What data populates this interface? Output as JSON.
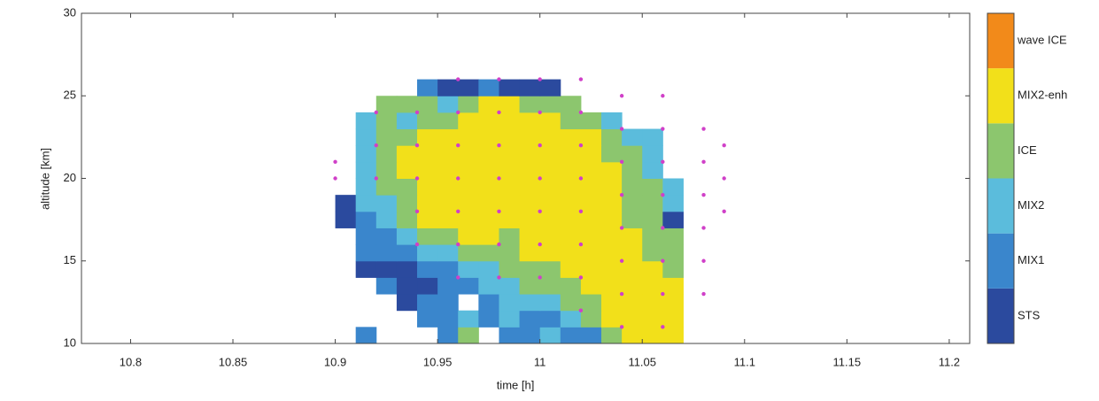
{
  "chart_data": {
    "type": "heatmap",
    "xlabel": "time [h]",
    "ylabel": "altitude [km]",
    "xlim": [
      10.776,
      11.21
    ],
    "ylim": [
      10,
      30
    ],
    "xticks": [
      10.8,
      10.85,
      10.9,
      10.95,
      11,
      11.05,
      11.1,
      11.15,
      11.2
    ],
    "yticks": [
      10,
      15,
      20,
      25,
      30
    ],
    "classes": [
      {
        "name": "STS",
        "color": "#2b4a9e"
      },
      {
        "name": "MIX1",
        "color": "#3a86cc"
      },
      {
        "name": "MIX2",
        "color": "#5bbcdc"
      },
      {
        "name": "ICE",
        "color": "#8cc66e"
      },
      {
        "name": "MIX2-enh",
        "color": "#f2e01a"
      },
      {
        "name": "wave ICE",
        "color": "#f28a1a"
      }
    ],
    "x": [
      10.895,
      10.905,
      10.915,
      10.925,
      10.935,
      10.945,
      10.955,
      10.965,
      10.975,
      10.985,
      10.995,
      11.005,
      11.015,
      11.025,
      11.035,
      11.045,
      11.055,
      11.065,
      11.075,
      11.085
    ],
    "y": [
      10.5,
      11.5,
      12.5,
      13.5,
      14.5,
      15.5,
      16.5,
      17.5,
      18.5,
      19.5,
      20.5,
      21.5,
      22.5,
      23.5,
      24.5,
      25.5
    ],
    "z": [
      [
        null,
        null,
        1,
        null,
        null,
        null,
        1,
        3,
        null,
        1,
        1,
        2,
        1,
        1,
        3,
        4,
        4,
        4,
        null,
        null
      ],
      [
        null,
        null,
        null,
        null,
        null,
        1,
        1,
        2,
        1,
        2,
        1,
        1,
        2,
        3,
        4,
        4,
        4,
        4,
        null,
        null
      ],
      [
        null,
        null,
        null,
        null,
        0,
        1,
        1,
        null,
        1,
        2,
        2,
        2,
        3,
        3,
        4,
        4,
        4,
        4,
        null,
        null
      ],
      [
        null,
        null,
        null,
        1,
        0,
        0,
        1,
        1,
        2,
        2,
        3,
        3,
        3,
        4,
        4,
        4,
        4,
        4,
        null,
        null
      ],
      [
        null,
        null,
        0,
        0,
        0,
        1,
        1,
        2,
        2,
        3,
        3,
        3,
        4,
        4,
        4,
        4,
        4,
        3,
        null,
        null
      ],
      [
        null,
        null,
        1,
        1,
        1,
        2,
        2,
        3,
        3,
        3,
        4,
        4,
        4,
        4,
        4,
        4,
        3,
        3,
        null,
        null
      ],
      [
        null,
        null,
        1,
        1,
        2,
        3,
        3,
        4,
        4,
        3,
        4,
        4,
        4,
        4,
        4,
        4,
        3,
        3,
        null,
        null
      ],
      [
        null,
        0,
        1,
        2,
        3,
        4,
        4,
        4,
        4,
        4,
        4,
        4,
        4,
        4,
        4,
        3,
        3,
        0,
        null,
        null
      ],
      [
        null,
        0,
        2,
        2,
        3,
        4,
        4,
        4,
        4,
        4,
        4,
        4,
        4,
        4,
        4,
        3,
        3,
        2,
        null,
        null
      ],
      [
        null,
        null,
        2,
        3,
        3,
        4,
        4,
        4,
        4,
        4,
        4,
        4,
        4,
        4,
        4,
        3,
        3,
        2,
        null,
        null
      ],
      [
        null,
        null,
        2,
        3,
        4,
        4,
        4,
        4,
        4,
        4,
        4,
        4,
        4,
        4,
        4,
        3,
        2,
        null,
        null,
        null
      ],
      [
        null,
        null,
        2,
        3,
        4,
        4,
        4,
        4,
        4,
        4,
        4,
        4,
        4,
        4,
        3,
        3,
        2,
        null,
        null,
        null
      ],
      [
        null,
        null,
        2,
        3,
        3,
        4,
        4,
        4,
        4,
        4,
        4,
        4,
        4,
        4,
        3,
        2,
        2,
        null,
        null,
        null
      ],
      [
        null,
        null,
        2,
        3,
        2,
        3,
        3,
        4,
        4,
        4,
        4,
        4,
        3,
        3,
        2,
        null,
        null,
        null,
        null,
        null
      ],
      [
        null,
        null,
        null,
        3,
        3,
        3,
        2,
        3,
        4,
        4,
        3,
        3,
        3,
        null,
        null,
        null,
        null,
        null,
        null,
        null
      ],
      [
        null,
        null,
        null,
        null,
        null,
        1,
        0,
        0,
        1,
        0,
        0,
        0,
        null,
        null,
        null,
        null,
        null,
        null,
        null,
        null
      ]
    ],
    "dots": {
      "color": "#d040c8",
      "x": [
        10.9,
        10.9,
        10.92,
        10.92,
        10.92,
        10.94,
        10.94,
        10.94,
        10.94,
        10.94,
        10.96,
        10.96,
        10.96,
        10.96,
        10.96,
        10.96,
        10.96,
        10.98,
        10.98,
        10.98,
        10.98,
        10.98,
        10.98,
        10.98,
        11,
        11,
        11,
        11,
        11,
        11,
        11,
        11.02,
        11.02,
        11.02,
        11.02,
        11.02,
        11.02,
        11.02,
        11.02,
        11.04,
        11.04,
        11.04,
        11.04,
        11.04,
        11.04,
        11.04,
        11.04,
        11.06,
        11.06,
        11.06,
        11.06,
        11.06,
        11.06,
        11.06,
        11.06,
        11.08,
        11.08,
        11.08,
        11.08,
        11.08,
        11.08,
        11.09,
        11.09,
        11.09
      ],
      "y": [
        20,
        21,
        20,
        22,
        24,
        16,
        18,
        20,
        22,
        24,
        14,
        16,
        18,
        20,
        22,
        24,
        26,
        14,
        16,
        18,
        20,
        22,
        24,
        26,
        14,
        16,
        18,
        20,
        22,
        24,
        26,
        12,
        14,
        16,
        18,
        20,
        22,
        24,
        26,
        11,
        13,
        15,
        17,
        19,
        21,
        23,
        25,
        11,
        13,
        15,
        17,
        19,
        21,
        23,
        25,
        13,
        15,
        17,
        19,
        21,
        23,
        18,
        20,
        22
      ]
    }
  }
}
